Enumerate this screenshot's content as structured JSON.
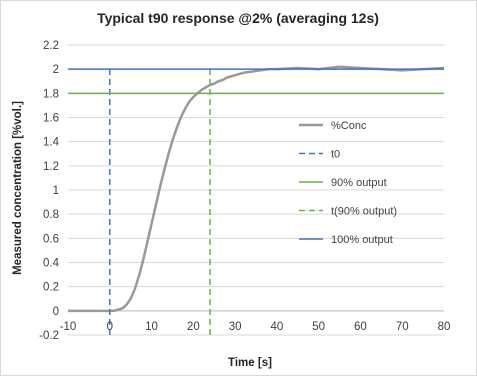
{
  "chart_data": {
    "type": "line",
    "title": "Typical t90 response @2% (averaging 12s)",
    "xlabel": "Time [s]",
    "ylabel": "Measured concentration [%vol.]",
    "xlim": [
      -10,
      80
    ],
    "ylim": [
      -0.2,
      2.2
    ],
    "x_ticks": [
      -10,
      0,
      10,
      20,
      30,
      40,
      50,
      60,
      70,
      80
    ],
    "y_ticks": [
      -0.2,
      0,
      0.2,
      0.4,
      0.6,
      0.8,
      1,
      1.2,
      1.4,
      1.6,
      1.8,
      2,
      2.2
    ],
    "y_tick_labels": [
      "-0.2",
      "0",
      "0.2",
      "0.4",
      "0.6",
      "0.8",
      "1",
      "1.2",
      "1.4",
      "1.6",
      "1.8",
      "2",
      "2.2"
    ],
    "grid": "horizontal",
    "legend_position": "right",
    "series": [
      {
        "name": "%Conc",
        "style": "solid",
        "color": "#999999",
        "x": [
          -10,
          0,
          1,
          2,
          3,
          4,
          5,
          6,
          7,
          8,
          9,
          10,
          11,
          12,
          13,
          14,
          15,
          16,
          17,
          18,
          19,
          20,
          21,
          22,
          23,
          24,
          25,
          26,
          27,
          28,
          30,
          32,
          34,
          36,
          38,
          40,
          45,
          50,
          55,
          60,
          65,
          70,
          75,
          80
        ],
        "y": [
          0,
          0,
          0,
          0.01,
          0.02,
          0.05,
          0.1,
          0.18,
          0.29,
          0.42,
          0.57,
          0.72,
          0.87,
          1.02,
          1.16,
          1.29,
          1.41,
          1.51,
          1.6,
          1.67,
          1.73,
          1.77,
          1.8,
          1.83,
          1.85,
          1.87,
          1.88,
          1.9,
          1.91,
          1.93,
          1.95,
          1.97,
          1.98,
          1.99,
          2.0,
          2.0,
          2.01,
          2.0,
          2.02,
          2.01,
          2.0,
          1.99,
          2.0,
          2.01
        ]
      },
      {
        "name": "t0",
        "style": "dashed",
        "color": "#4472c4",
        "x": [
          0,
          0
        ],
        "y": [
          -0.2,
          2.0
        ]
      },
      {
        "name": "90% output",
        "style": "solid",
        "color": "#70ad47",
        "x": [
          -10,
          80
        ],
        "y": [
          1.8,
          1.8
        ]
      },
      {
        "name": "t(90% output)",
        "style": "dashed",
        "color": "#70ad47",
        "x": [
          24,
          24
        ],
        "y": [
          -0.2,
          2.0
        ]
      },
      {
        "name": "100% output",
        "style": "solid",
        "color": "#4472c4",
        "x": [
          -10,
          80
        ],
        "y": [
          2.0,
          2.0
        ]
      }
    ]
  }
}
